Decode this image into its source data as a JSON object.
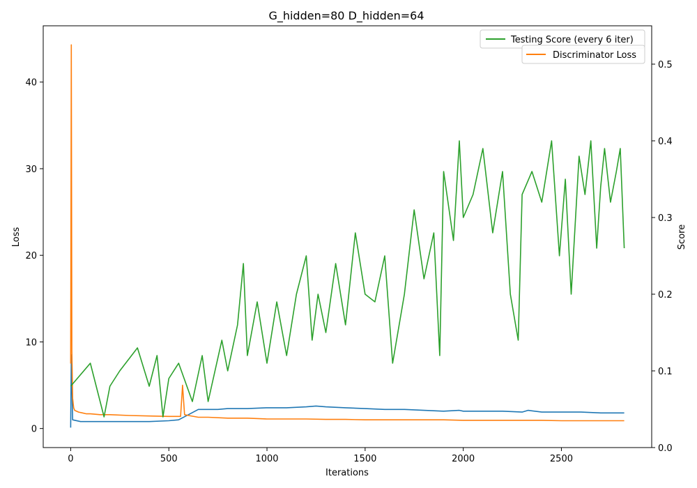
{
  "chart_data": {
    "type": "line",
    "title": "G_hidden=80 D_hidden=64",
    "xlabel": "Iterations",
    "ylabel": "Loss",
    "y2label": "Score",
    "xlim": [
      -140,
      2960
    ],
    "ylim": [
      -2.2,
      46.5
    ],
    "y2lim": [
      0,
      0.55
    ],
    "xticks": [
      0,
      500,
      1000,
      1500,
      2000,
      2500
    ],
    "yticks": [
      0,
      10,
      20,
      30,
      40
    ],
    "y2ticks": [
      0.0,
      0.1,
      0.2,
      0.3,
      0.4,
      0.5
    ],
    "legend_position": "top-right",
    "legend": [
      "Testing Score (every 6 iter)",
      "Discriminator Loss"
    ],
    "colors": {
      "generator_loss": "#1f77b4",
      "discriminator_loss": "#ff7f0e",
      "testing_score": "#2ca02c"
    },
    "series": [
      {
        "name": "Testing Score (every 6 iter)",
        "axis": "right",
        "color": "#2ca02c",
        "x": [
          0,
          100,
          170,
          200,
          250,
          340,
          400,
          440,
          470,
          500,
          550,
          620,
          670,
          700,
          770,
          800,
          850,
          880,
          900,
          950,
          1000,
          1050,
          1100,
          1150,
          1200,
          1230,
          1260,
          1300,
          1350,
          1400,
          1450,
          1500,
          1550,
          1600,
          1640,
          1700,
          1750,
          1800,
          1850,
          1880,
          1900,
          1950,
          1980,
          2000,
          2050,
          2100,
          2150,
          2200,
          2240,
          2280,
          2300,
          2350,
          2400,
          2450,
          2490,
          2520,
          2550,
          2590,
          2620,
          2650,
          2680,
          2700,
          2720,
          2750,
          2780,
          2800,
          2820
        ],
        "y": [
          0.08,
          0.11,
          0.04,
          0.08,
          0.1,
          0.13,
          0.08,
          0.12,
          0.04,
          0.09,
          0.11,
          0.06,
          0.12,
          0.06,
          0.14,
          0.1,
          0.16,
          0.24,
          0.12,
          0.19,
          0.11,
          0.19,
          0.12,
          0.2,
          0.25,
          0.14,
          0.2,
          0.15,
          0.24,
          0.16,
          0.28,
          0.2,
          0.19,
          0.25,
          0.11,
          0.2,
          0.31,
          0.22,
          0.28,
          0.12,
          0.36,
          0.27,
          0.4,
          0.3,
          0.33,
          0.39,
          0.28,
          0.36,
          0.2,
          0.14,
          0.33,
          0.36,
          0.32,
          0.4,
          0.25,
          0.35,
          0.2,
          0.38,
          0.33,
          0.4,
          0.26,
          0.34,
          0.39,
          0.32,
          0.36,
          0.39,
          0.26
        ]
      },
      {
        "name": "Discriminator Loss",
        "axis": "left",
        "color": "#ff7f0e",
        "x": [
          0,
          3,
          6,
          10,
          15,
          20,
          40,
          60,
          80,
          100,
          150,
          200,
          300,
          400,
          500,
          560,
          570,
          580,
          600,
          650,
          700,
          800,
          900,
          1000,
          1100,
          1200,
          1300,
          1400,
          1500,
          1600,
          1700,
          1800,
          1900,
          2000,
          2100,
          2200,
          2300,
          2400,
          2500,
          2600,
          2700,
          2820
        ],
        "y": [
          7.5,
          44.3,
          9,
          3.5,
          2.4,
          2.1,
          1.9,
          1.8,
          1.7,
          1.7,
          1.6,
          1.6,
          1.5,
          1.45,
          1.4,
          1.4,
          5.0,
          1.6,
          1.5,
          1.3,
          1.3,
          1.2,
          1.2,
          1.1,
          1.1,
          1.1,
          1.05,
          1.05,
          1.0,
          1.0,
          1.0,
          1.0,
          1.0,
          0.95,
          0.95,
          0.95,
          0.95,
          0.95,
          0.9,
          0.9,
          0.9,
          0.9
        ]
      },
      {
        "axis": "left",
        "color": "#1f77b4",
        "x": [
          0,
          3,
          10,
          50,
          100,
          200,
          300,
          400,
          500,
          550,
          600,
          650,
          700,
          750,
          800,
          900,
          1000,
          1100,
          1200,
          1250,
          1300,
          1400,
          1500,
          1600,
          1700,
          1800,
          1900,
          1980,
          2000,
          2100,
          2200,
          2300,
          2330,
          2400,
          2500,
          2600,
          2700,
          2820
        ],
        "y": [
          0.1,
          8.5,
          1.0,
          0.8,
          0.8,
          0.8,
          0.8,
          0.8,
          0.9,
          1.0,
          1.6,
          2.2,
          2.2,
          2.2,
          2.3,
          2.3,
          2.4,
          2.4,
          2.5,
          2.6,
          2.5,
          2.4,
          2.3,
          2.2,
          2.2,
          2.1,
          2.0,
          2.1,
          2.0,
          2.0,
          2.0,
          1.9,
          2.1,
          1.9,
          1.9,
          1.9,
          1.8,
          1.8
        ]
      }
    ]
  }
}
